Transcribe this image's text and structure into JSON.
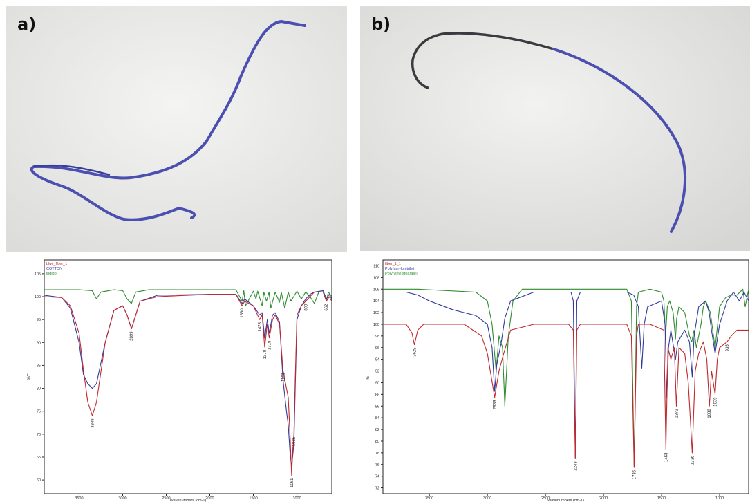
{
  "panels": {
    "a_label": "a)",
    "b_label": "b)"
  },
  "chart_data": [
    {
      "type": "line",
      "title": "",
      "xlabel": "Wavenumbers (cm-1)",
      "ylabel": "%T",
      "x_reversed": true,
      "xlim": [
        3900,
        600
      ],
      "ylim": [
        57,
        108
      ],
      "xticks": [
        3500,
        3000,
        2500,
        2000,
        1500,
        1000
      ],
      "yticks": [
        60,
        65,
        70,
        75,
        80,
        85,
        90,
        95,
        100,
        105
      ],
      "legend": {
        "position": "top-left",
        "entries": [
          "blue_fiber_1",
          "COTTON",
          "indigo"
        ]
      },
      "series": [
        {
          "name": "blue_fiber_1",
          "color": "#c0282d",
          "x": [
            3900,
            3700,
            3600,
            3500,
            3450,
            3400,
            3348,
            3300,
            3200,
            3100,
            3000,
            2950,
            2899,
            2850,
            2800,
            2600,
            2000,
            1700,
            1630,
            1600,
            1500,
            1428,
            1400,
            1370,
            1340,
            1318,
            1280,
            1250,
            1200,
            1161,
            1120,
            1100,
            1080,
            1061,
            1050,
            1035,
            1020,
            1000,
            950,
            899,
            850,
            800,
            700,
            662,
            630,
            600
          ],
          "y": [
            100,
            99.8,
            98,
            92,
            84,
            77,
            74,
            77,
            90,
            97,
            98,
            96,
            93,
            96,
            99,
            100,
            100.5,
            100.5,
            98,
            99,
            98,
            95,
            96,
            89,
            94,
            91,
            95,
            96,
            94,
            84,
            80,
            78,
            70,
            61,
            66,
            70,
            82,
            96,
            98,
            99,
            100,
            101,
            101,
            99,
            100,
            99
          ]
        },
        {
          "name": "COTTON",
          "color": "#2f3b9c",
          "x": [
            3900,
            3700,
            3600,
            3500,
            3450,
            3400,
            3348,
            3300,
            3200,
            3100,
            3000,
            2950,
            2899,
            2850,
            2800,
            2600,
            2000,
            1700,
            1630,
            1600,
            1500,
            1428,
            1400,
            1370,
            1340,
            1318,
            1280,
            1250,
            1200,
            1161,
            1120,
            1100,
            1080,
            1061,
            1050,
            1035,
            1020,
            1000,
            950,
            899,
            850,
            800,
            700,
            662,
            630,
            600
          ],
          "y": [
            100.3,
            99.8,
            97.5,
            90,
            83,
            81,
            80,
            81,
            90,
            97,
            98,
            96,
            93,
            96,
            99,
            100.3,
            100.5,
            100.5,
            98.5,
            99.5,
            98,
            96,
            96.5,
            91,
            95,
            92,
            96,
            96.5,
            94.5,
            82,
            75,
            72,
            66,
            63,
            65,
            68,
            80,
            95,
            98,
            99.5,
            100.5,
            101,
            101.3,
            99.5,
            100.5,
            99.5
          ]
        },
        {
          "name": "indigo",
          "color": "#2e8b2e",
          "x": [
            3900,
            3500,
            3350,
            3300,
            3250,
            3100,
            3000,
            2950,
            2900,
            2850,
            2700,
            2000,
            1700,
            1630,
            1610,
            1590,
            1500,
            1470,
            1450,
            1400,
            1380,
            1350,
            1320,
            1300,
            1250,
            1200,
            1180,
            1140,
            1100,
            1070,
            1000,
            950,
            900,
            850,
            800,
            750,
            700,
            662,
            640,
            600
          ],
          "y": [
            101.5,
            101.5,
            101.3,
            99.5,
            101,
            101.5,
            101.3,
            99.5,
            98.5,
            101,
            101.5,
            101.5,
            101.5,
            99,
            101.3,
            98,
            101.2,
            99.5,
            101.2,
            98,
            101,
            99,
            101,
            97.5,
            101,
            98.8,
            101,
            97.5,
            101,
            99,
            101.2,
            99.5,
            101,
            100,
            98.5,
            101,
            101,
            99,
            101,
            100
          ]
        }
      ],
      "annotations": [
        {
          "x": 3348,
          "label": "3348"
        },
        {
          "x": 2899,
          "label": "2899"
        },
        {
          "x": 1630,
          "label": "1630"
        },
        {
          "x": 1428,
          "label": "1428"
        },
        {
          "x": 1370,
          "label": "1370"
        },
        {
          "x": 1318,
          "label": "1318"
        },
        {
          "x": 1161,
          "label": "1161"
        },
        {
          "x": 1061,
          "label": "1061"
        },
        {
          "x": 1035,
          "label": "1035"
        },
        {
          "x": 899,
          "label": "899"
        },
        {
          "x": 662,
          "label": "662"
        }
      ]
    },
    {
      "type": "line",
      "title": "",
      "xlabel": "Wavenumbers (cm-1)",
      "ylabel": "%T",
      "x_reversed": true,
      "xlim": [
        3900,
        750
      ],
      "ylim": [
        71,
        111
      ],
      "xticks": [
        3500,
        3000,
        2500,
        2000,
        1500,
        1000
      ],
      "yticks": [
        72,
        74,
        76,
        78,
        80,
        82,
        84,
        86,
        88,
        90,
        92,
        94,
        96,
        98,
        100,
        102,
        104,
        106,
        108,
        110
      ],
      "legend": {
        "position": "top-left",
        "entries": [
          "fiber_1_1",
          "Poly(acrylonitrile)",
          "Poly(vinyl stearate)"
        ]
      },
      "series": [
        {
          "name": "fiber_1_1",
          "color": "#c0282d",
          "x": [
            3900,
            3700,
            3650,
            3629,
            3600,
            3550,
            3200,
            3050,
            3000,
            2950,
            2938,
            2900,
            2860,
            2800,
            2600,
            2300,
            2260,
            2243,
            2230,
            2200,
            1800,
            1760,
            1736,
            1715,
            1700,
            1600,
            1480,
            1463,
            1445,
            1420,
            1390,
            1372,
            1350,
            1300,
            1270,
            1236,
            1210,
            1180,
            1140,
            1110,
            1088,
            1070,
            1039,
            1020,
            1000,
            935,
            900,
            850,
            800,
            750
          ],
          "y": [
            100,
            100,
            98.5,
            96.5,
            99,
            100,
            100,
            98,
            95,
            89,
            87.5,
            92,
            95,
            99,
            100,
            100,
            99,
            77,
            99,
            100,
            100,
            98,
            75.5,
            98,
            100,
            100,
            99,
            78.5,
            96,
            94,
            96,
            86,
            96,
            95,
            90,
            78,
            92,
            95,
            97,
            94,
            86,
            92,
            88,
            94,
            96,
            97,
            98,
            99,
            99,
            99
          ]
        },
        {
          "name": "Poly(acrylonitrile)",
          "color": "#2f3b9c",
          "x": [
            3900,
            3700,
            3600,
            3500,
            3300,
            3200,
            3100,
            3000,
            2960,
            2938,
            2920,
            2880,
            2850,
            2800,
            2600,
            2280,
            2260,
            2243,
            2230,
            2200,
            1800,
            1740,
            1700,
            1670,
            1650,
            1620,
            1500,
            1470,
            1455,
            1440,
            1420,
            1380,
            1360,
            1300,
            1260,
            1236,
            1220,
            1180,
            1120,
            1090,
            1070,
            1039,
            1000,
            935,
            880,
            830,
            790,
            750
          ],
          "y": [
            105.5,
            105.5,
            105,
            104,
            102.5,
            102,
            101.5,
            100,
            96,
            88.5,
            93,
            97,
            101,
            104,
            105.5,
            105.5,
            104,
            77,
            104,
            105.5,
            105.5,
            105,
            103,
            92.5,
            100,
            103,
            104,
            100,
            87.5,
            96,
            99,
            94,
            97,
            99,
            97,
            91,
            98,
            103,
            104,
            102,
            99,
            95,
            100,
            104,
            105.5,
            104,
            105.5,
            104
          ]
        },
        {
          "name": "Poly(vinyl stearate)",
          "color": "#2e8b2e",
          "x": [
            3900,
            3600,
            3100,
            3000,
            2960,
            2925,
            2900,
            2870,
            2850,
            2820,
            2780,
            2700,
            2000,
            1800,
            1760,
            1736,
            1715,
            1700,
            1600,
            1500,
            1480,
            1465,
            1450,
            1430,
            1400,
            1380,
            1370,
            1350,
            1300,
            1260,
            1240,
            1220,
            1200,
            1160,
            1140,
            1120,
            1080,
            1039,
            1000,
            950,
            900,
            850,
            800,
            780,
            750
          ],
          "y": [
            106,
            106,
            105.5,
            104,
            100,
            92,
            98,
            96,
            86,
            98,
            104,
            106,
            106,
            106,
            104,
            75.5,
            103,
            105.5,
            106,
            105.5,
            104,
            98,
            103,
            104,
            102,
            97.5,
            101,
            103,
            102,
            98,
            97,
            99,
            96,
            100,
            103,
            104,
            102,
            96,
            103,
            104.5,
            105,
            105,
            106,
            103,
            106
          ]
        }
      ],
      "annotations": [
        {
          "x": 3629,
          "label": "3629"
        },
        {
          "x": 2938,
          "label": "2938"
        },
        {
          "x": 2243,
          "label": "2243"
        },
        {
          "x": 1736,
          "label": "1736"
        },
        {
          "x": 1463,
          "label": "1463"
        },
        {
          "x": 1372,
          "label": "1372"
        },
        {
          "x": 1236,
          "label": "1236"
        },
        {
          "x": 1088,
          "label": "1088"
        },
        {
          "x": 1039,
          "label": "1039"
        },
        {
          "x": 935,
          "label": "935"
        }
      ]
    }
  ]
}
